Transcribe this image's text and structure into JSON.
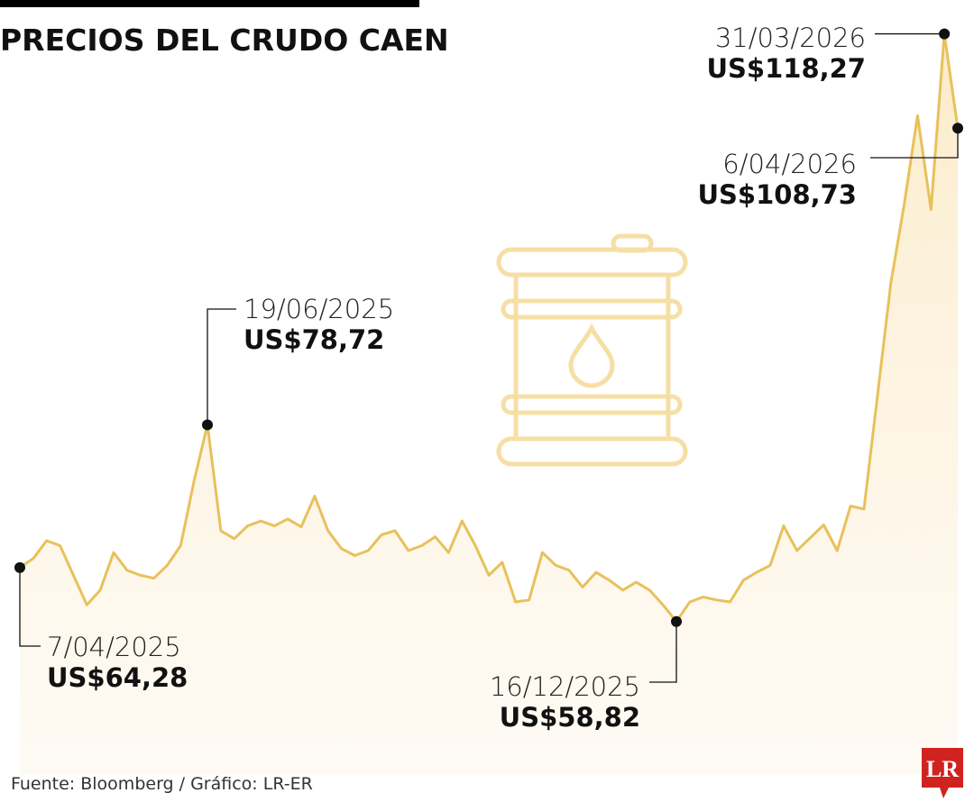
{
  "header": {
    "title": "PRECIOS DEL CRUDO CAEN"
  },
  "footer": {
    "source": "Fuente: Bloomberg / Gráfico: LR-ER",
    "logo": "LR"
  },
  "chart_data": {
    "type": "line",
    "color": "#e8c15a",
    "categories": [
      "7/04/2025",
      null,
      null,
      null,
      null,
      null,
      null,
      null,
      null,
      null,
      null,
      null,
      null,
      null,
      "19/06/2025",
      null,
      null,
      null,
      null,
      null,
      null,
      null,
      null,
      null,
      null,
      null,
      null,
      null,
      null,
      null,
      null,
      null,
      null,
      null,
      null,
      null,
      null,
      null,
      null,
      null,
      null,
      null,
      null,
      null,
      null,
      null,
      null,
      null,
      null,
      "16/12/2025",
      null,
      null,
      null,
      null,
      null,
      null,
      null,
      null,
      null,
      null,
      null,
      null,
      null,
      null,
      null,
      null,
      null,
      null,
      null,
      "31/03/2026",
      "6/04/2026"
    ],
    "values": [
      64.28,
      65.2,
      67.0,
      66.5,
      63.5,
      60.5,
      62.0,
      65.8,
      64.0,
      63.5,
      63.2,
      64.5,
      66.5,
      73.0,
      78.72,
      68.0,
      67.2,
      68.5,
      69.0,
      68.5,
      69.2,
      68.4,
      71.5,
      68.0,
      66.2,
      65.5,
      66.0,
      67.6,
      68.0,
      66.0,
      66.5,
      67.4,
      65.8,
      69.0,
      66.5,
      63.5,
      64.8,
      60.8,
      61.0,
      65.8,
      64.5,
      64.0,
      62.3,
      63.8,
      63.0,
      62.0,
      62.8,
      62.0,
      60.5,
      58.82,
      60.8,
      61.3,
      61.0,
      60.8,
      63.0,
      63.8,
      64.5,
      68.5,
      66.0,
      67.3,
      68.6,
      66.0,
      70.5,
      70.2,
      81.6,
      93.0,
      101.0,
      110.0,
      100.5,
      118.27,
      108.73
    ],
    "value_labels": [
      "US$64,28",
      null,
      null,
      null,
      null,
      null,
      null,
      null,
      null,
      null,
      null,
      null,
      null,
      null,
      "US$78,72",
      null,
      null,
      null,
      null,
      null,
      null,
      null,
      null,
      null,
      null,
      null,
      null,
      null,
      null,
      null,
      null,
      null,
      null,
      null,
      null,
      null,
      null,
      null,
      null,
      null,
      null,
      null,
      null,
      null,
      null,
      null,
      null,
      null,
      null,
      "US$58,82",
      null,
      null,
      null,
      null,
      null,
      null,
      null,
      null,
      null,
      null,
      null,
      null,
      null,
      null,
      null,
      null,
      null,
      null,
      null,
      "US$118,27",
      "US$108,73"
    ]
  }
}
